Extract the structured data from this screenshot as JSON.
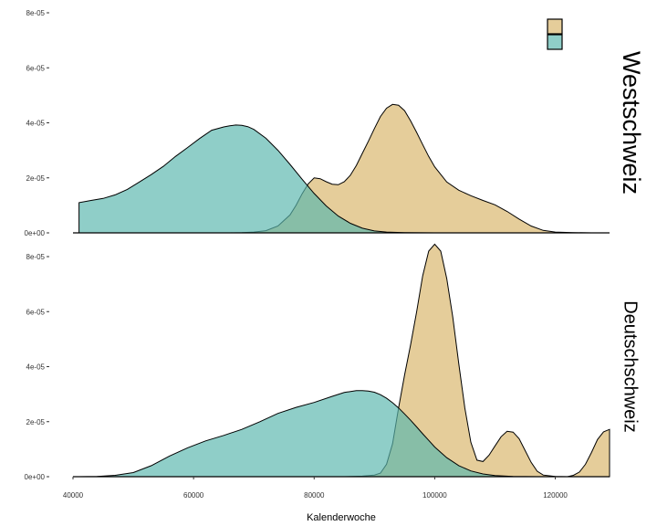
{
  "chart_data": {
    "type": "area",
    "title": "",
    "xlabel": "Kalenderwoche",
    "ylabel": "",
    "xlim": [
      40000,
      129000
    ],
    "ylim": [
      0,
      8e-05
    ],
    "x_ticks": [
      40000,
      60000,
      80000,
      100000,
      120000
    ],
    "x_tick_labels": [
      "40000",
      "60000",
      "80000",
      "100000",
      "120000"
    ],
    "y_ticks": [
      0,
      2e-05,
      4e-05,
      6e-05,
      8e-05
    ],
    "y_tick_labels": [
      "0e+00",
      "2e-05",
      "4e-05",
      "6e-05",
      "8e-05"
    ],
    "grid": false,
    "legend": {
      "position": "top-right",
      "labels": [
        "",
        ""
      ]
    },
    "colors": {
      "tan": "#d8b56a",
      "teal": "#5ab7ae",
      "line": "#000000"
    },
    "panels": [
      {
        "label": "Westschweiz",
        "series": [
          {
            "color": "tan",
            "x": [
              66000,
              68000,
              70000,
              72000,
              74000,
              76000,
              77000,
              78000,
              79000,
              80000,
              81000,
              82000,
              83000,
              84000,
              85000,
              86000,
              87000,
              88000,
              89000,
              90000,
              91000,
              92000,
              93000,
              94000,
              95000,
              96000,
              97000,
              98000,
              99000,
              100000,
              102000,
              104000,
              106000,
              108000,
              110000,
              112000,
              114000,
              116000,
              118000,
              120000,
              123000,
              126000,
              129000
            ],
            "y": [
              0,
              1e-07,
              3e-07,
              8e-07,
              2.5e-06,
              6.5e-06,
              1e-05,
              1.42e-05,
              1.78e-05,
              2e-05,
              1.97e-05,
              1.86e-05,
              1.77e-05,
              1.75e-05,
              1.86e-05,
              2.09e-05,
              2.45e-05,
              2.89e-05,
              3.33e-05,
              3.79e-05,
              4.23e-05,
              4.53e-05,
              4.67e-05,
              4.64e-05,
              4.44e-05,
              4.07e-05,
              3.65e-05,
              3.21e-05,
              2.78e-05,
              2.4e-05,
              1.85e-05,
              1.55e-05,
              1.35e-05,
              1.18e-05,
              1.02e-05,
              7.8e-06,
              5e-06,
              2.5e-06,
              9e-07,
              3e-07,
              1e-07,
              0,
              0
            ]
          },
          {
            "color": "teal",
            "x": [
              41000,
              43000,
              45000,
              47000,
              49000,
              51000,
              53000,
              55000,
              57000,
              59000,
              61000,
              63000,
              65000,
              66000,
              67000,
              68000,
              69000,
              70000,
              72000,
              74000,
              76000,
              78000,
              80000,
              82000,
              84000,
              86000,
              88000,
              90000,
              92000,
              95000,
              100000,
              129000
            ],
            "y": [
              1.1e-05,
              1.18e-05,
              1.25e-05,
              1.38e-05,
              1.58e-05,
              1.85e-05,
              2.12e-05,
              2.42e-05,
              2.78e-05,
              3.1e-05,
              3.43e-05,
              3.73e-05,
              3.85e-05,
              3.89e-05,
              3.92e-05,
              3.91e-05,
              3.86e-05,
              3.76e-05,
              3.44e-05,
              3e-05,
              2.49e-05,
              1.95e-05,
              1.43e-05,
              9.8e-06,
              6.1e-06,
              3.5e-06,
              1.7e-06,
              7e-07,
              3e-07,
              1e-07,
              0,
              0
            ]
          }
        ]
      },
      {
        "label": "Deutschschweiz",
        "series": [
          {
            "color": "tan",
            "x": [
              85000,
              88000,
              90000,
              91000,
              92000,
              93000,
              94000,
              95000,
              96000,
              97000,
              98000,
              99000,
              100000,
              101000,
              102000,
              103000,
              104000,
              105000,
              106000,
              107000,
              108000,
              109000,
              110000,
              111000,
              112000,
              113000,
              114000,
              115000,
              116000,
              117000,
              118000,
              120000,
              122000,
              123000,
              124000,
              125000,
              126000,
              127000,
              128000,
              129000
            ],
            "y": [
              0,
              2e-07,
              6e-07,
              1.3e-06,
              4.5e-06,
              1.2e-05,
              2.5e-05,
              3.7e-05,
              4.8e-05,
              6e-05,
              7.3e-05,
              8.2e-05,
              8.45e-05,
              8.2e-05,
              7.2e-05,
              5.8e-05,
              4.1e-05,
              2.5e-05,
              1.25e-05,
              6e-06,
              5.5e-06,
              7.8e-06,
              1.12e-05,
              1.45e-05,
              1.65e-05,
              1.62e-05,
              1.38e-05,
              9.5e-06,
              5.2e-06,
              2e-06,
              6e-07,
              1e-07,
              0,
              5e-07,
              1.7e-06,
              4.5e-06,
              8.8e-06,
              1.35e-05,
              1.63e-05,
              1.72e-05
            ]
          },
          {
            "color": "teal",
            "x": [
              41000,
              44000,
              47000,
              50000,
              53000,
              56000,
              59000,
              62000,
              65000,
              68000,
              71000,
              74000,
              77000,
              80000,
              83000,
              85000,
              87000,
              88000,
              89000,
              90000,
              91000,
              92000,
              93000,
              94000,
              95000,
              96000,
              97000,
              98000,
              99000,
              100000,
              102000,
              104000,
              106000,
              108000,
              110000,
              113000,
              117000,
              121000,
              125000,
              129000
            ],
            "y": [
              0,
              1e-07,
              5e-07,
              1.5e-06,
              4e-06,
              7.5e-06,
              1.05e-05,
              1.3e-05,
              1.5e-05,
              1.72e-05,
              2e-05,
              2.3e-05,
              2.52e-05,
              2.7e-05,
              2.92e-05,
              3.06e-05,
              3.13e-05,
              3.13e-05,
              3.11e-05,
              3.07e-05,
              2.98e-05,
              2.85e-05,
              2.69e-05,
              2.5e-05,
              2.28e-05,
              2.05e-05,
              1.81e-05,
              1.56e-05,
              1.32e-05,
              1.08e-05,
              6.9e-06,
              4e-06,
              2.1e-06,
              1e-06,
              4e-07,
              1e-07,
              0,
              0,
              0,
              0
            ]
          }
        ]
      }
    ]
  }
}
